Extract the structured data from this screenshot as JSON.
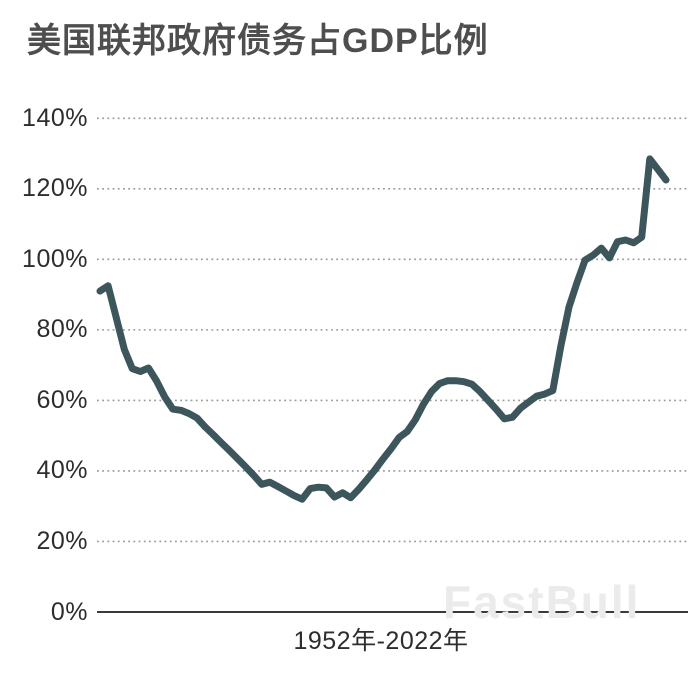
{
  "watermark": "FastBull",
  "colors": {
    "background": "#ffffff",
    "title": "#4e4e4e",
    "tick_label": "#2d2d2d",
    "gridline": "#999999",
    "axis_line": "#3a3a3a",
    "data_line": "#3d565c",
    "watermark": "#ebebeb"
  },
  "chart_data": {
    "type": "line",
    "title": "美国联邦政府债务占GDP比例",
    "xlabel": "1952年-2022年",
    "ylabel": "",
    "ylim": [
      0,
      140
    ],
    "ytick_labels": [
      "140%",
      "120%",
      "100%",
      "80%",
      "60%",
      "40%",
      "20%",
      "0%"
    ],
    "grid": "horizontal-dotted",
    "legend_position": "none",
    "series_name": "美国联邦政府债务占GDP比例",
    "years": [
      1952,
      1953,
      1954,
      1955,
      1956,
      1957,
      1958,
      1959,
      1960,
      1961,
      1962,
      1963,
      1964,
      1965,
      1966,
      1967,
      1968,
      1969,
      1970,
      1971,
      1972,
      1973,
      1974,
      1975,
      1976,
      1977,
      1978,
      1979,
      1980,
      1981,
      1982,
      1983,
      1984,
      1985,
      1986,
      1987,
      1988,
      1989,
      1990,
      1991,
      1992,
      1993,
      1994,
      1995,
      1996,
      1997,
      1998,
      1999,
      2000,
      2001,
      2002,
      2003,
      2004,
      2005,
      2006,
      2007,
      2008,
      2009,
      2010,
      2011,
      2012,
      2013,
      2014,
      2015,
      2016,
      2017,
      2018,
      2019,
      2020,
      2021,
      2022
    ],
    "values": [
      91.0,
      92.5,
      83.5,
      74.5,
      69.0,
      68.2,
      69.2,
      65.5,
      61.0,
      57.5,
      57.2,
      56.3,
      55.0,
      52.5,
      50.3,
      48.0,
      45.8,
      43.5,
      41.2,
      38.8,
      36.2,
      36.8,
      35.6,
      34.3,
      33.0,
      32.0,
      35.0,
      35.4,
      35.2,
      32.6,
      33.8,
      32.4,
      34.8,
      37.5,
      40.3,
      43.4,
      46.3,
      49.5,
      51.2,
      54.5,
      58.9,
      62.5,
      64.8,
      65.6,
      65.6,
      65.3,
      64.6,
      62.5,
      60.0,
      57.5,
      54.8,
      55.2,
      57.8,
      59.5,
      61.2,
      61.8,
      62.8,
      75.5,
      86.5,
      93.5,
      99.8,
      101.2,
      103.2,
      100.4,
      105.0,
      105.5,
      104.7,
      106.3,
      128.5,
      125.5,
      122.5
    ]
  }
}
